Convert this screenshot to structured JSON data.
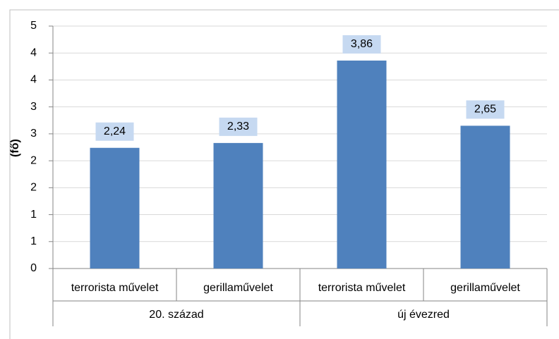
{
  "chart_data": {
    "type": "bar",
    "y_label": "(fő)",
    "groups": [
      "20. század",
      "új évezred"
    ],
    "categories": [
      "terrorista művelet",
      "gerillaművelet",
      "terrorista művelet",
      "gerillaművelet"
    ],
    "values": [
      2.24,
      2.33,
      3.86,
      2.65
    ],
    "value_labels": [
      "2,24",
      "2,33",
      "3,86",
      "2,65"
    ],
    "color": "#4f81bd",
    "ylim": [
      0,
      4.5
    ],
    "yticks": [
      0,
      {
        "value": 0.5,
        "label": "1"
      },
      1,
      {
        "value": 1.5,
        "label": "2"
      },
      2,
      {
        "value": 2.5,
        "label": "3"
      },
      3,
      {
        "value": 3.5,
        "label": "4"
      },
      4,
      {
        "value": 4.5,
        "label": "5"
      }
    ],
    "grid": true
  }
}
